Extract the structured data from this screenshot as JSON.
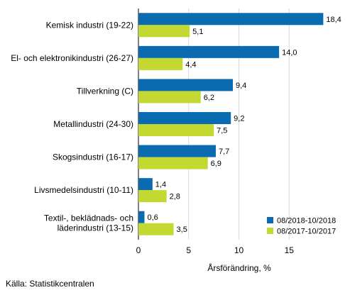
{
  "chart_data": {
    "type": "bar",
    "orientation": "horizontal",
    "categories": [
      [
        "Kemisk industri (19-22)"
      ],
      [
        "El- och elektronikindustri (26-27)"
      ],
      [
        "Tillverkning (C)"
      ],
      [
        "Metallindustri (24-30)"
      ],
      [
        "Skogsindustri (16-17)"
      ],
      [
        "Livsmedelsindustri (10-11)"
      ],
      [
        "Textil-, beklädnads- och",
        "läderindustri (13-15)"
      ]
    ],
    "series": [
      {
        "name": "08/2018-10/2018",
        "color": "#0a6bb0",
        "values": [
          18.4,
          14.0,
          9.4,
          9.2,
          7.7,
          1.4,
          0.6
        ],
        "labels": [
          "18,4",
          "14,0",
          "9,4",
          "9,2",
          "7,7",
          "1,4",
          "0,6"
        ]
      },
      {
        "name": "08/2017-10/2017",
        "color": "#c3d831",
        "values": [
          5.1,
          4.4,
          6.2,
          7.5,
          6.9,
          2.8,
          3.5
        ],
        "labels": [
          "5,1",
          "4,4",
          "6,2",
          "7,5",
          "6,9",
          "2,8",
          "3,5"
        ]
      }
    ],
    "xlim": [
      0,
      20
    ],
    "xticks": [
      0,
      5,
      10,
      15
    ],
    "xlabel": "Årsförändring, %",
    "grid": "vertical",
    "legend_position": "bottom-right"
  },
  "source": "Källa: Statistikcentralen"
}
